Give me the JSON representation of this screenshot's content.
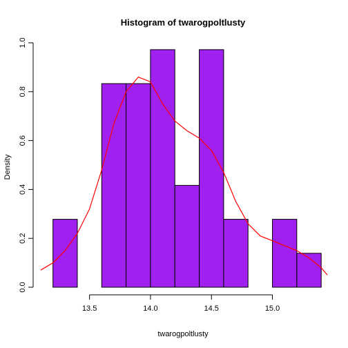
{
  "chart_data": {
    "type": "bar",
    "title": "Histogram of twarogpoltlusty",
    "xlabel": "twarogpoltlusty",
    "ylabel": "Density",
    "xlim": [
      13.1,
      15.45
    ],
    "ylim": [
      0,
      1.0
    ],
    "x_ticks": [
      "13.5",
      "14.0",
      "14.5",
      "15.0"
    ],
    "y_ticks": [
      "0.0",
      "0.2",
      "0.4",
      "0.6",
      "0.8",
      "1.0"
    ],
    "bins": [
      {
        "start": 13.2,
        "end": 13.4,
        "density": 0.278
      },
      {
        "start": 13.4,
        "end": 13.6,
        "density": 0.0
      },
      {
        "start": 13.6,
        "end": 13.8,
        "density": 0.833
      },
      {
        "start": 13.8,
        "end": 14.0,
        "density": 0.833
      },
      {
        "start": 14.0,
        "end": 14.2,
        "density": 0.972
      },
      {
        "start": 14.2,
        "end": 14.4,
        "density": 0.417
      },
      {
        "start": 14.4,
        "end": 14.6,
        "density": 0.972
      },
      {
        "start": 14.6,
        "end": 14.8,
        "density": 0.278
      },
      {
        "start": 14.8,
        "end": 15.0,
        "density": 0.0
      },
      {
        "start": 15.0,
        "end": 15.2,
        "density": 0.278
      },
      {
        "start": 15.2,
        "end": 15.4,
        "density": 0.139
      }
    ],
    "density_curve": [
      [
        13.1,
        0.07
      ],
      [
        13.2,
        0.1
      ],
      [
        13.3,
        0.15
      ],
      [
        13.4,
        0.22
      ],
      [
        13.5,
        0.32
      ],
      [
        13.6,
        0.48
      ],
      [
        13.7,
        0.67
      ],
      [
        13.8,
        0.8
      ],
      [
        13.9,
        0.86
      ],
      [
        14.0,
        0.84
      ],
      [
        14.1,
        0.75
      ],
      [
        14.2,
        0.68
      ],
      [
        14.3,
        0.64
      ],
      [
        14.4,
        0.61
      ],
      [
        14.5,
        0.56
      ],
      [
        14.6,
        0.47
      ],
      [
        14.7,
        0.35
      ],
      [
        14.8,
        0.26
      ],
      [
        14.9,
        0.21
      ],
      [
        15.0,
        0.19
      ],
      [
        15.1,
        0.17
      ],
      [
        15.2,
        0.15
      ],
      [
        15.3,
        0.12
      ],
      [
        15.4,
        0.08
      ],
      [
        15.45,
        0.05
      ]
    ],
    "colors": {
      "bar_fill": "#A020F0",
      "density_line": "#FF0000"
    },
    "grid": false,
    "legend": "none"
  }
}
